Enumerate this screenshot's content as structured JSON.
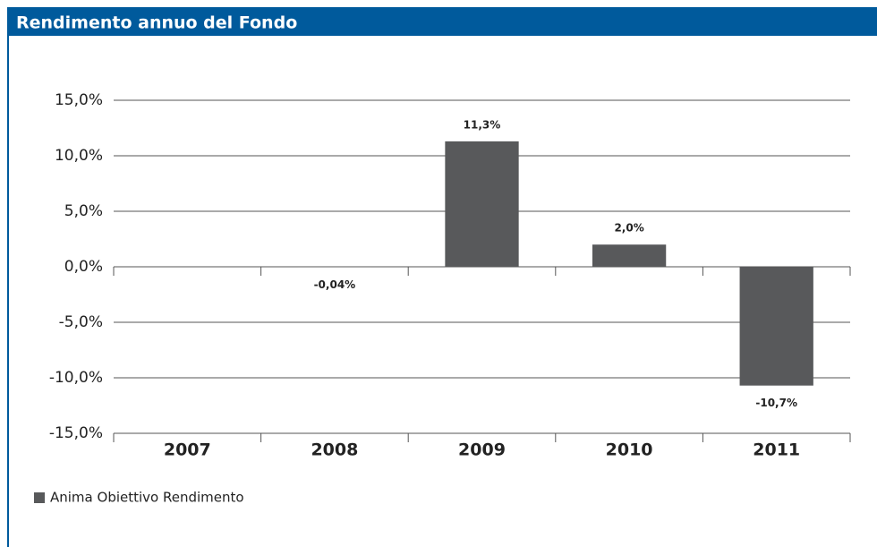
{
  "chart_data": {
    "type": "bar",
    "title": "Rendimento annuo del Fondo",
    "categories": [
      "2007",
      "2008",
      "2009",
      "2010",
      "2011"
    ],
    "series": [
      {
        "name": "Anima Obiettivo Rendimento",
        "color": "#58595b",
        "values": [
          null,
          -0.04,
          11.3,
          2.0,
          -10.7
        ],
        "value_labels": [
          null,
          "-0,04%",
          "11,3%",
          "2,0%",
          "-10,7%"
        ]
      }
    ],
    "ylim": [
      -15,
      15
    ],
    "yticks": [
      {
        "value": -15,
        "label": "-15,0%"
      },
      {
        "value": -10,
        "label": "-10,0%"
      },
      {
        "value": -5,
        "label": "-5,0%"
      },
      {
        "value": 0,
        "label": "0,0%"
      },
      {
        "value": 5,
        "label": "5,0%"
      },
      {
        "value": 10,
        "label": "10,0%"
      },
      {
        "value": 15,
        "label": "15,0%"
      }
    ],
    "grid": true,
    "legend": "bottom-left"
  }
}
